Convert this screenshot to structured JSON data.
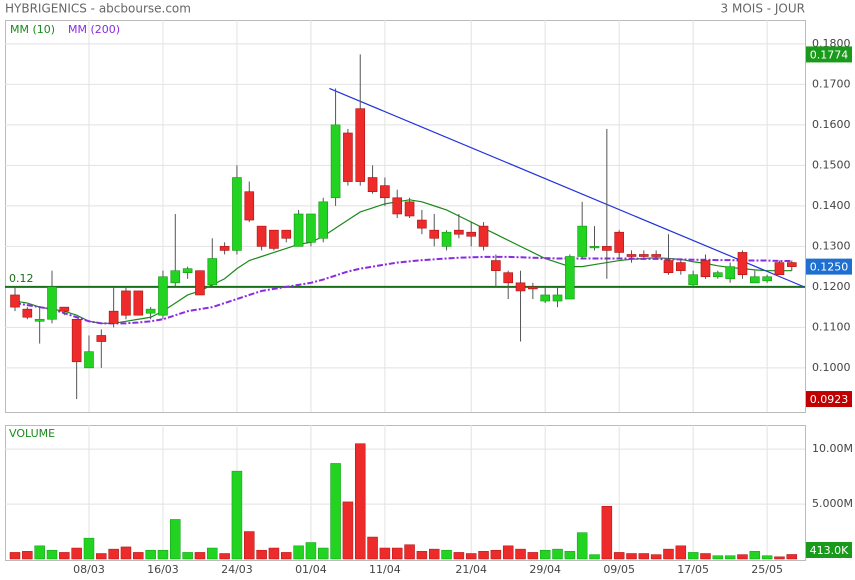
{
  "header": {
    "title": "HYBRIGENICS - abcbourse.com",
    "period": "3 MOIS - JOUR"
  },
  "chart_data": {
    "type": "candlestick",
    "categories": [
      null,
      null,
      null,
      null,
      null,
      null,
      "08/03",
      null,
      null,
      null,
      null,
      null,
      "16/03",
      null,
      null,
      null,
      null,
      null,
      "24/03",
      null,
      null,
      null,
      null,
      null,
      "01/04",
      null,
      null,
      null,
      null,
      null,
      "11/04",
      null,
      null,
      null,
      null,
      null,
      null,
      "21/04",
      null,
      null,
      null,
      null,
      null,
      "29/04",
      null,
      null,
      null,
      null,
      null,
      "09/05",
      null,
      null,
      null,
      null,
      null,
      "17/05",
      null,
      null,
      null,
      null,
      null,
      "25/05",
      null,
      null
    ],
    "open": [
      0.118,
      0.1145,
      0.1115,
      0.112,
      0.115,
      0.112,
      0.1,
      0.108,
      0.114,
      0.119,
      0.119,
      0.1135,
      0.113,
      0.121,
      0.1235,
      0.124,
      0.1205,
      0.13,
      0.129,
      0.1435,
      0.135,
      0.134,
      0.134,
      0.13,
      0.131,
      0.132,
      0.142,
      0.158,
      0.164,
      0.147,
      0.145,
      0.142,
      0.141,
      0.1365,
      0.134,
      0.13,
      0.134,
      0.1335,
      0.135,
      0.1265,
      0.1235,
      0.121,
      0.12,
      0.1165,
      0.1165,
      0.117,
      0.1275,
      0.13,
      0.13,
      0.1335,
      0.128,
      0.128,
      0.128,
      0.1265,
      0.126,
      0.1205,
      0.1265,
      0.1225,
      0.122,
      0.1285,
      0.121,
      0.1215,
      0.126,
      0.126
    ],
    "high": [
      0.12,
      0.115,
      0.115,
      0.124,
      0.115,
      0.112,
      0.108,
      0.1095,
      0.12,
      0.12,
      0.119,
      0.115,
      0.124,
      0.138,
      0.125,
      0.124,
      0.132,
      0.131,
      0.15,
      0.146,
      0.135,
      0.134,
      0.134,
      0.139,
      0.138,
      0.142,
      0.169,
      0.159,
      0.1774,
      0.15,
      0.147,
      0.144,
      0.142,
      0.139,
      0.138,
      0.134,
      0.138,
      0.136,
      0.136,
      0.128,
      0.124,
      0.124,
      0.121,
      0.12,
      0.12,
      0.128,
      0.141,
      0.135,
      0.159,
      0.134,
      0.129,
      0.129,
      0.129,
      0.133,
      0.127,
      0.124,
      0.128,
      0.124,
      0.126,
      0.129,
      0.124,
      0.123,
      0.1265,
      0.1265
    ],
    "low": [
      0.114,
      0.112,
      0.106,
      0.111,
      0.113,
      0.0923,
      0.1,
      0.1,
      0.11,
      0.112,
      0.113,
      0.112,
      0.112,
      0.12,
      0.122,
      0.118,
      0.12,
      0.128,
      0.128,
      0.136,
      0.129,
      0.129,
      0.131,
      0.13,
      0.13,
      0.131,
      0.14,
      0.145,
      0.145,
      0.143,
      0.14,
      0.137,
      0.137,
      0.133,
      0.13,
      0.129,
      0.132,
      0.13,
      0.129,
      0.12,
      0.117,
      0.1065,
      0.117,
      0.116,
      0.115,
      0.117,
      0.127,
      0.129,
      0.122,
      0.127,
      0.126,
      0.127,
      0.127,
      0.123,
      0.123,
      0.12,
      0.122,
      0.122,
      0.121,
      0.122,
      0.121,
      0.121,
      0.123,
      0.124
    ],
    "close": [
      0.115,
      0.1125,
      0.112,
      0.12,
      0.114,
      0.1015,
      0.104,
      0.1065,
      0.111,
      0.113,
      0.113,
      0.1145,
      0.1225,
      0.124,
      0.1245,
      0.118,
      0.127,
      0.129,
      0.147,
      0.1365,
      0.13,
      0.1295,
      0.132,
      0.138,
      0.138,
      0.141,
      0.16,
      0.146,
      0.146,
      0.1435,
      0.142,
      0.138,
      0.1375,
      0.1345,
      0.132,
      0.1335,
      0.133,
      0.1325,
      0.13,
      0.124,
      0.121,
      0.119,
      0.1195,
      0.118,
      0.118,
      0.1275,
      0.135,
      0.13,
      0.129,
      0.1285,
      0.1275,
      0.1275,
      0.1275,
      0.1235,
      0.124,
      0.123,
      0.1225,
      0.1235,
      0.125,
      0.123,
      0.1225,
      0.1225,
      0.123,
      0.125
    ],
    "up_color": "#22d322",
    "down_color": "#ee2b2b",
    "ylim": [
      0.0891,
      0.1859
    ],
    "yticks": [
      {
        "value": 0.1,
        "label": "0.1000"
      },
      {
        "value": 0.11,
        "label": "0.1100"
      },
      {
        "value": 0.12,
        "label": "0.1200"
      },
      {
        "value": 0.13,
        "label": "0.1300"
      },
      {
        "value": 0.14,
        "label": "0.1400"
      },
      {
        "value": 0.15,
        "label": "0.1500"
      },
      {
        "value": 0.16,
        "label": "0.1600"
      },
      {
        "value": 0.17,
        "label": "0.1700"
      },
      {
        "value": 0.18,
        "label": "0.1800"
      }
    ],
    "grid": true,
    "series": [
      {
        "name": "MM (10)",
        "color": "#1a8a1a",
        "dash": false,
        "values": [
          0.1165,
          0.116,
          0.115,
          0.1145,
          0.114,
          0.113,
          0.1115,
          0.111,
          0.111,
          0.1115,
          0.112,
          0.1125,
          0.114,
          0.116,
          0.118,
          0.119,
          0.1205,
          0.122,
          0.1245,
          0.1265,
          0.1275,
          0.1285,
          0.1295,
          0.1305,
          0.131,
          0.1325,
          0.1345,
          0.1365,
          0.1385,
          0.1395,
          0.1405,
          0.141,
          0.1415,
          0.141,
          0.14,
          0.139,
          0.1375,
          0.136,
          0.1345,
          0.133,
          0.1315,
          0.13,
          0.1285,
          0.127,
          0.126,
          0.125,
          0.125,
          0.1255,
          0.126,
          0.1265,
          0.1268,
          0.127,
          0.1272,
          0.127,
          0.1268,
          0.1262,
          0.1258,
          0.1252,
          0.1248,
          0.1245,
          0.1242,
          0.124,
          0.124,
          0.124
        ]
      },
      {
        "name": "MM (200)",
        "color": "#8a2be2",
        "dash": true,
        "values": [
          0.116,
          0.1155,
          0.115,
          0.1145,
          0.1135,
          0.1125,
          0.1115,
          0.111,
          0.111,
          0.111,
          0.1112,
          0.1115,
          0.112,
          0.113,
          0.114,
          0.1145,
          0.115,
          0.116,
          0.117,
          0.118,
          0.119,
          0.1195,
          0.12,
          0.1205,
          0.121,
          0.1218,
          0.1228,
          0.1238,
          0.1245,
          0.125,
          0.1255,
          0.126,
          0.1263,
          0.1266,
          0.1268,
          0.127,
          0.1272,
          0.1273,
          0.1274,
          0.1274,
          0.1274,
          0.1273,
          0.1272,
          0.1271,
          0.127,
          0.127,
          0.127,
          0.127,
          0.127,
          0.127,
          0.127,
          0.1269,
          0.1269,
          0.1268,
          0.1268,
          0.1267,
          0.1267,
          0.1266,
          0.1266,
          0.1265,
          0.1265,
          0.1265,
          0.1264,
          0.1264
        ]
      }
    ],
    "trendline": {
      "x": [
        25.5,
        64
      ],
      "y": [
        0.169,
        0.12
      ],
      "color": "#2233dd"
    },
    "hline": {
      "value": 0.12,
      "label": "0.12",
      "color": "#1a6e1a"
    },
    "price_tags": [
      {
        "value": 0.1774,
        "label": "0.1774",
        "color": "#1a9a1a"
      },
      {
        "value": 0.125,
        "label": "0.1250",
        "color": "#1f6fd0"
      },
      {
        "value": 0.0923,
        "label": "0.0923",
        "color": "#c00000"
      }
    ],
    "volume": {
      "title": "VOLUME",
      "values": [
        600000,
        700000,
        1200000,
        800000,
        600000,
        1000000,
        1900000,
        500000,
        900000,
        1100000,
        600000,
        800000,
        800000,
        3600000,
        600000,
        600000,
        1000000,
        500000,
        8000000,
        2500000,
        800000,
        1000000,
        600000,
        1200000,
        1500000,
        1000000,
        8700000,
        5200000,
        10500000,
        2000000,
        1000000,
        1000000,
        1300000,
        700000,
        900000,
        800000,
        600000,
        500000,
        700000,
        800000,
        1200000,
        900000,
        600000,
        800000,
        900000,
        700000,
        2400000,
        400000,
        4800000,
        600000,
        500000,
        500000,
        400000,
        900000,
        1200000,
        600000,
        500000,
        300000,
        300000,
        400000,
        700000,
        300000,
        200000,
        413000
      ],
      "ylim": [
        0,
        12200000
      ],
      "yticks": [
        {
          "value": 5000000,
          "label": "5.000M"
        },
        {
          "value": 10000000,
          "label": "10.00M"
        }
      ],
      "last": {
        "value": 413000,
        "label": "413.0K",
        "color": "#1a9a1a"
      }
    }
  }
}
